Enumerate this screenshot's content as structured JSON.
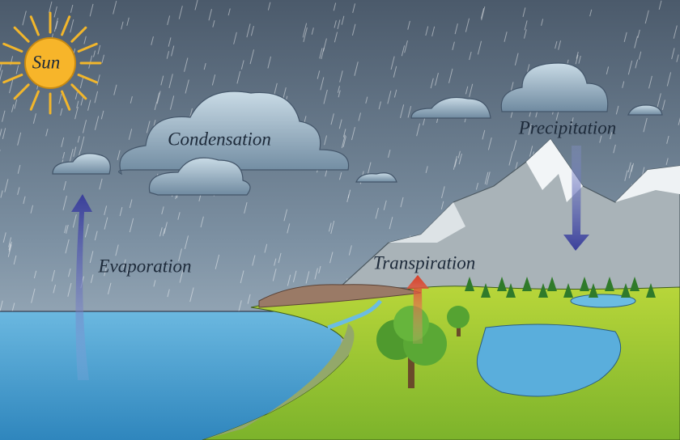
{
  "labels": {
    "sun": "Sun",
    "condensation": "Condensation",
    "precipitation": "Precipitation",
    "evaporation": "Evaporation",
    "transpiration": "Transpiration"
  }
}
